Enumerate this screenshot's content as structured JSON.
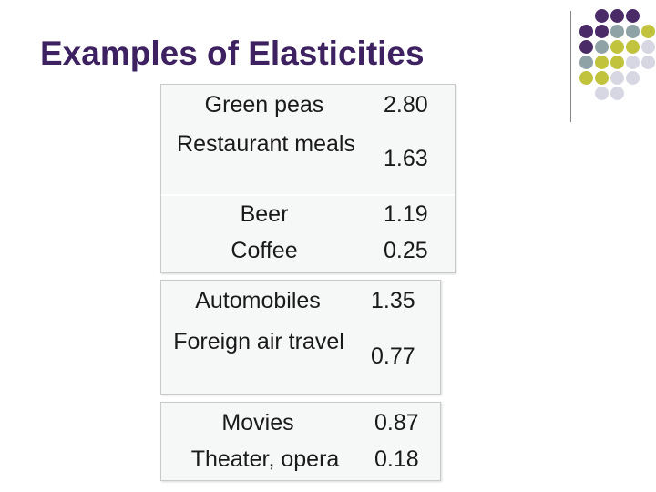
{
  "slide": {
    "title": "Examples of Elasticities"
  },
  "decoration": {
    "dot_colors": {
      "purple": "#4b2a68",
      "gray_blue": "#8fa2a6",
      "olive": "#c2c33c",
      "lavender": "#d7d7e3"
    }
  },
  "groups": [
    {
      "rows": [
        {
          "label": "Green peas",
          "value": "2.80"
        },
        {
          "label": "Restaurant meals",
          "value": "1.63"
        },
        {
          "label": "Beer",
          "value": "1.19"
        },
        {
          "label": "Coffee",
          "value": "0.25"
        }
      ]
    },
    {
      "rows": [
        {
          "label": "Automobiles",
          "value": "1.35"
        },
        {
          "label": "Foreign air travel",
          "value": "0.77"
        }
      ]
    },
    {
      "rows": [
        {
          "label": "Movies",
          "value": "0.87"
        },
        {
          "label": "Theater, opera",
          "value": "0.18"
        }
      ]
    }
  ]
}
